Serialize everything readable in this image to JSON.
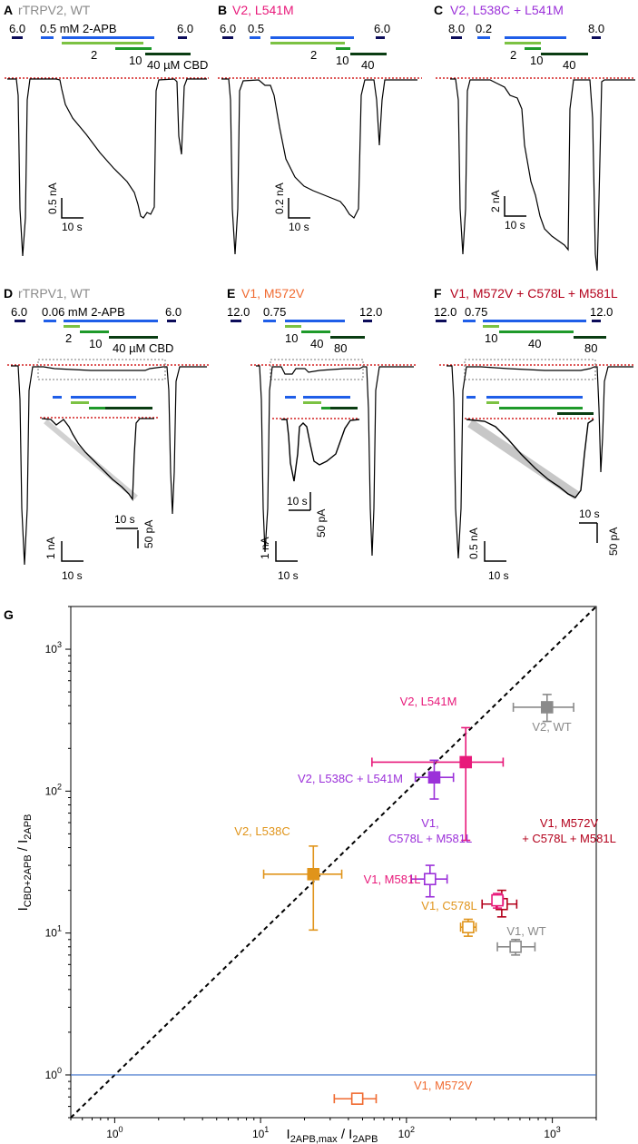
{
  "colors": {
    "black": "#000000",
    "blue": "#1f5ee8",
    "lightgreen": "#7cc243",
    "green": "#1e9a2a",
    "darkgreen": "#0a3d12",
    "navy": "#0c0c5a",
    "red_dotted": "#d42020",
    "gray": "#8a8a8a",
    "pink": "#e8197a",
    "purple": "#9b30d9",
    "orange": "#e0941a",
    "darkred": "#b3001b",
    "redorange": "#f06a30",
    "baseline": "#3a6fc9"
  },
  "panels": [
    {
      "letter": "A",
      "title": "rTRPV2, WT",
      "title_color": "gray",
      "pre_conc": "6.0",
      "conc1": "0.5",
      "conc1_suffix": " mM 2-APB",
      "conc2": "2",
      "conc3": "10",
      "conc4": "40 µM CBD",
      "post_conc": "6.0",
      "scale_y": "0.5 nA",
      "scale_x": "10 s"
    },
    {
      "letter": "B",
      "title": "V2, L541M",
      "title_color": "pink",
      "pre_conc": "6.0",
      "conc1": "0.5",
      "conc1_suffix": "",
      "conc2": "2",
      "conc3": "10",
      "conc4": "40",
      "post_conc": "6.0",
      "scale_y": "0.2 nA",
      "scale_x": "10 s"
    },
    {
      "letter": "C",
      "title": "V2, L538C + L541M",
      "title_color": "purple",
      "pre_conc": "8.0",
      "conc1": "0.2",
      "conc1_suffix": "",
      "conc2": "2",
      "conc3": "10",
      "conc4": "40",
      "post_conc": "8.0",
      "scale_y": "2 nA",
      "scale_x": "10 s"
    },
    {
      "letter": "D",
      "title": "rTRPV1, WT",
      "title_color": "gray",
      "pre_conc": "6.0",
      "conc1": "0.06",
      "conc1_suffix": " mM 2-APB",
      "conc2": "2",
      "conc3": "10",
      "conc4": "40 µM CBD",
      "post_conc": "6.0",
      "scale_y": "1 nA",
      "scale_x": "10 s",
      "inset_scale_y": "50 pA",
      "inset_scale_x": "10 s"
    },
    {
      "letter": "E",
      "title": "V1, M572V",
      "title_color": "redorange",
      "pre_conc": "12.0",
      "conc1": "0.75",
      "conc1_suffix": "",
      "conc2": "10",
      "conc3": "40",
      "conc4": "80",
      "post_conc": "12.0",
      "scale_y": "1 nA",
      "scale_x": "10 s",
      "inset_scale_y": "50 pA",
      "inset_scale_x": "10 s"
    },
    {
      "letter": "F",
      "title": "V1, M572V + C578L + M581L",
      "title_color": "darkred",
      "pre_conc": "12.0",
      "conc1": "0.75",
      "conc1_suffix": "",
      "conc2": "10",
      "conc3": "40",
      "conc4": "80",
      "post_conc": "12.0",
      "scale_y": "0.5 nA",
      "scale_x": "10 s",
      "inset_scale_y": "50 pA",
      "inset_scale_x": "10 s"
    }
  ],
  "chart_data": {
    "panel_letter": "G",
    "type": "scatter",
    "xscale": "log",
    "yscale": "log",
    "xlim": [
      0.5,
      2000
    ],
    "ylim": [
      0.5,
      2000
    ],
    "xlabel_main": "I",
    "xlabel_sub": "2APB,max",
    "xlabel_mid": " / I",
    "xlabel_sub2": "2APB",
    "ylabel_main": "I",
    "ylabel_sub": "CBD+2APB",
    "ylabel_mid": " / I",
    "ylabel_sub2": "2APB",
    "xticks": [
      {
        "v": 1,
        "b": "10",
        "e": "0"
      },
      {
        "v": 10,
        "b": "10",
        "e": "1"
      },
      {
        "v": 100,
        "b": "10",
        "e": "2"
      },
      {
        "v": 1000,
        "b": "10",
        "e": "3"
      }
    ],
    "yticks": [
      {
        "v": 1,
        "b": "10",
        "e": "0"
      },
      {
        "v": 10,
        "b": "10",
        "e": "1"
      },
      {
        "v": 100,
        "b": "10",
        "e": "2"
      },
      {
        "v": 1000,
        "b": "10",
        "e": "3"
      }
    ],
    "identity_line": true,
    "reference_y": 1,
    "points": [
      {
        "label": "V2, WT",
        "color": "gray",
        "filled": true,
        "x": 920,
        "y": 390,
        "xerr": [
          540,
          1400
        ],
        "yerr": [
          310,
          480
        ]
      },
      {
        "label": "V2, L541M",
        "color": "pink",
        "filled": true,
        "x": 255,
        "y": 160,
        "xerr": [
          58,
          460
        ],
        "yerr": [
          45,
          280
        ]
      },
      {
        "label": "V2, L538C + L541M",
        "color": "purple",
        "filled": true,
        "x": 155,
        "y": 125,
        "xerr": [
          115,
          210
        ],
        "yerr": [
          88,
          165
        ]
      },
      {
        "label": "V2, L538C",
        "color": "orange",
        "filled": true,
        "x": 23,
        "y": 26,
        "xerr": [
          10.5,
          36
        ],
        "yerr": [
          10.5,
          41
        ]
      },
      {
        "label": "V1, C578L + M581L",
        "color": "purple",
        "filled": false,
        "x": 145,
        "y": 24,
        "xerr": [
          108,
          190
        ],
        "yerr": [
          18,
          30
        ]
      },
      {
        "label": "V1, M572V + C578L + M581L",
        "color": "darkred",
        "filled": false,
        "x": 450,
        "y": 16,
        "xerr": [
          330,
          570
        ],
        "yerr": [
          13,
          20
        ]
      },
      {
        "label": "V1, M581L",
        "color": "pink",
        "filled": false,
        "x": 420,
        "y": 17,
        "xerr": [
          390,
          460
        ],
        "yerr": [
          15,
          19
        ]
      },
      {
        "label": "V1, C578L",
        "color": "orange",
        "filled": false,
        "x": 265,
        "y": 11,
        "xerr": [
          235,
          300
        ],
        "yerr": [
          9.5,
          12.5
        ]
      },
      {
        "label": "V1, WT",
        "color": "gray",
        "filled": false,
        "x": 560,
        "y": 8,
        "xerr": [
          420,
          760
        ],
        "yerr": [
          7,
          9
        ]
      },
      {
        "label": "V1, M572V",
        "color": "redorange",
        "filled": false,
        "x": 46,
        "y": 0.68,
        "xerr": [
          32,
          62
        ],
        "yerr": [
          0.66,
          0.7
        ]
      }
    ],
    "point_labels": [
      {
        "lines": [
          "V2, L541M"
        ],
        "color": "pink"
      },
      {
        "lines": [
          "V2, WT"
        ],
        "color": "gray"
      },
      {
        "lines": [
          "V2, L538C + L541M"
        ],
        "color": "purple"
      },
      {
        "lines": [
          "V1,",
          "C578L + M581L"
        ],
        "color": "purple"
      },
      {
        "lines": [
          "V1, M572V",
          "+ C578L + M581L"
        ],
        "color": "darkred"
      },
      {
        "lines": [
          "V2, L538C"
        ],
        "color": "orange"
      },
      {
        "lines": [
          "V1, M581L"
        ],
        "color": "pink"
      },
      {
        "lines": [
          "V1, C578L"
        ],
        "color": "orange"
      },
      {
        "lines": [
          "V1, WT"
        ],
        "color": "gray"
      },
      {
        "lines": [
          "V1, M572V"
        ],
        "color": "redorange"
      }
    ]
  }
}
